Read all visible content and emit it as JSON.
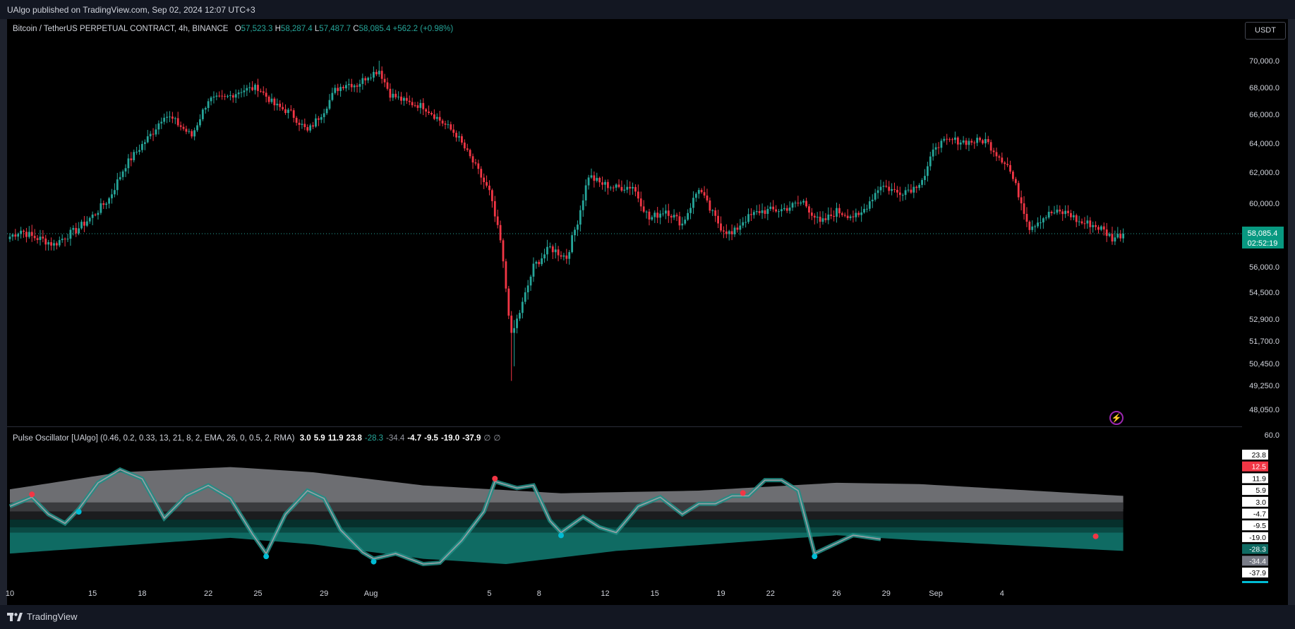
{
  "header": {
    "published": "UAlgo published on TradingView.com, Sep 02, 2024 12:07 UTC+3"
  },
  "symbol": {
    "name": "Bitcoin / TetherUS PERPETUAL CONTRACT, 4h, BINANCE",
    "o_label": "O",
    "o": "57,523.3",
    "h_label": "H",
    "h": "58,287.4",
    "l_label": "L",
    "l": "57,487.7",
    "c_label": "C",
    "c": "58,085.4",
    "change": "+562.2 (+0.98%)"
  },
  "currency_button": "USDT",
  "last_price": {
    "value": "58,085.4",
    "countdown": "02:52:19",
    "color": "#089981"
  },
  "indicator": {
    "name": "Pulse Oscillator [UAlgo] (0.46, 0.2, 0.33, 13, 21, 8, 2, EMA, 26, 0, 0.5, 2, RMA)",
    "values": [
      {
        "text": "3.0",
        "style": "v"
      },
      {
        "text": "5.9",
        "style": "v"
      },
      {
        "text": "11.9",
        "style": "v"
      },
      {
        "text": "23.8",
        "style": "v"
      },
      {
        "text": "-28.3",
        "style": "g"
      },
      {
        "text": "-34.4",
        "style": "gr"
      },
      {
        "text": "-4.7",
        "style": "v"
      },
      {
        "text": "-9.5",
        "style": "v"
      },
      {
        "text": "-19.0",
        "style": "v"
      },
      {
        "text": "-37.9",
        "style": "v"
      },
      {
        "text": "∅",
        "style": "gr"
      },
      {
        "text": "∅",
        "style": "gr"
      }
    ],
    "axis_top": "60.0",
    "axis_badges": [
      {
        "text": "23.8",
        "bg": "#ffffff",
        "fg": "#000000"
      },
      {
        "text": "12.5",
        "bg": "#f23645",
        "fg": "#ffffff"
      },
      {
        "text": "11.9",
        "bg": "#ffffff",
        "fg": "#000000"
      },
      {
        "text": "5.9",
        "bg": "#ffffff",
        "fg": "#000000"
      },
      {
        "text": "3.0",
        "bg": "#ffffff",
        "fg": "#000000"
      },
      {
        "text": "-4.7",
        "bg": "#ffffff",
        "fg": "#000000"
      },
      {
        "text": "-9.5",
        "bg": "#ffffff",
        "fg": "#000000"
      },
      {
        "text": "-19.0",
        "bg": "#ffffff",
        "fg": "#000000"
      },
      {
        "text": "-28.3",
        "bg": "#0f6b63",
        "fg": "#ffffff"
      },
      {
        "text": "-34.4",
        "bg": "#787b86",
        "fg": "#ffffff"
      },
      {
        "text": "-37.9",
        "bg": "#ffffff",
        "fg": "#000000"
      }
    ]
  },
  "footer": {
    "brand": "TradingView"
  },
  "colors": {
    "up": "#26a69a",
    "down": "#f23645",
    "bg": "#000000",
    "cyan_dot": "#00bcd4",
    "red_dot": "#f23645"
  },
  "chart_data": {
    "type": "candlestick",
    "title": "Bitcoin / TetherUS PERPETUAL CONTRACT, 4h, BINANCE",
    "y_ticks": [
      70000,
      68000,
      66000,
      64000,
      62000,
      60000,
      56000,
      54500,
      52900,
      51700,
      50450,
      49250,
      48050
    ],
    "y_tick_labels": [
      "70,000.0",
      "68,000.0",
      "66,000.0",
      "64,000.0",
      "62,000.0",
      "60,000.0",
      "56,000.0",
      "54,500.0",
      "52,900.0",
      "51,700.0",
      "50,450.0",
      "49,250.0",
      "48,050.0"
    ],
    "x_tick_labels": [
      "10",
      "15",
      "18",
      "22",
      "25",
      "29",
      "Aug",
      "5",
      "8",
      "12",
      "15",
      "19",
      "22",
      "26",
      "29",
      "Sep",
      "4"
    ],
    "x_tick_bar_index": [
      0,
      30,
      48,
      72,
      90,
      114,
      131,
      174,
      192,
      216,
      234,
      258,
      276,
      300,
      318,
      336,
      360
    ],
    "price_anchors": [
      [
        0,
        57900
      ],
      [
        4,
        58300
      ],
      [
        8,
        57900
      ],
      [
        12,
        57700
      ],
      [
        16,
        57400
      ],
      [
        20,
        57900
      ],
      [
        24,
        58300
      ],
      [
        30,
        59200
      ],
      [
        36,
        60300
      ],
      [
        42,
        62500
      ],
      [
        48,
        63900
      ],
      [
        52,
        64800
      ],
      [
        56,
        66000
      ],
      [
        60,
        65500
      ],
      [
        66,
        64500
      ],
      [
        72,
        67100
      ],
      [
        78,
        67200
      ],
      [
        84,
        67800
      ],
      [
        90,
        68000
      ],
      [
        96,
        66700
      ],
      [
        102,
        66100
      ],
      [
        108,
        64800
      ],
      [
        114,
        66300
      ],
      [
        118,
        67800
      ],
      [
        122,
        68300
      ],
      [
        126,
        68200
      ],
      [
        130,
        68900
      ],
      [
        134,
        69300
      ],
      [
        138,
        67500
      ],
      [
        144,
        66900
      ],
      [
        150,
        66600
      ],
      [
        156,
        65600
      ],
      [
        162,
        64600
      ],
      [
        168,
        62700
      ],
      [
        174,
        60700
      ],
      [
        178,
        57600
      ],
      [
        182,
        51900
      ],
      [
        186,
        53800
      ],
      [
        190,
        56000
      ],
      [
        196,
        57200
      ],
      [
        202,
        56600
      ],
      [
        206,
        58900
      ],
      [
        210,
        61800
      ],
      [
        214,
        61300
      ],
      [
        220,
        61000
      ],
      [
        226,
        61100
      ],
      [
        232,
        59000
      ],
      [
        238,
        59600
      ],
      [
        244,
        58700
      ],
      [
        250,
        61000
      ],
      [
        254,
        59600
      ],
      [
        258,
        58500
      ],
      [
        262,
        58000
      ],
      [
        266,
        58900
      ],
      [
        272,
        59500
      ],
      [
        280,
        59600
      ],
      [
        288,
        60100
      ],
      [
        294,
        58700
      ],
      [
        300,
        59500
      ],
      [
        308,
        59100
      ],
      [
        316,
        61200
      ],
      [
        322,
        60700
      ],
      [
        328,
        61000
      ],
      [
        332,
        61800
      ],
      [
        336,
        63900
      ],
      [
        342,
        64200
      ],
      [
        348,
        64100
      ],
      [
        354,
        64200
      ],
      [
        358,
        63300
      ],
      [
        362,
        62500
      ],
      [
        366,
        60600
      ],
      [
        370,
        58500
      ],
      [
        374,
        59000
      ],
      [
        378,
        59400
      ],
      [
        384,
        59400
      ],
      [
        388,
        58800
      ],
      [
        392,
        58700
      ],
      [
        396,
        58400
      ],
      [
        400,
        57800
      ],
      [
        404,
        58085
      ]
    ],
    "last_price": 58085.4,
    "oscillator": {
      "name": "Pulse Oscillator [UAlgo]",
      "ylim": [
        -45,
        60
      ],
      "signal_down_bars": [
        8,
        176,
        266,
        394
      ],
      "signal_up_bars": [
        25,
        93,
        132,
        200,
        292
      ],
      "line": [
        [
          0,
          6
        ],
        [
          8,
          13
        ],
        [
          14,
          0
        ],
        [
          20,
          -7
        ],
        [
          25,
          4
        ],
        [
          32,
          24
        ],
        [
          40,
          34
        ],
        [
          48,
          27
        ],
        [
          56,
          -3
        ],
        [
          64,
          14
        ],
        [
          72,
          22
        ],
        [
          80,
          12
        ],
        [
          88,
          -15
        ],
        [
          93,
          -30
        ],
        [
          100,
          0
        ],
        [
          108,
          18
        ],
        [
          114,
          12
        ],
        [
          120,
          -12
        ],
        [
          128,
          -29
        ],
        [
          132,
          -34
        ],
        [
          140,
          -30
        ],
        [
          150,
          -38
        ],
        [
          156,
          -37
        ],
        [
          164,
          -20
        ],
        [
          172,
          2
        ],
        [
          176,
          25
        ],
        [
          184,
          20
        ],
        [
          190,
          22
        ],
        [
          196,
          -5
        ],
        [
          200,
          -14
        ],
        [
          208,
          -2
        ],
        [
          214,
          -10
        ],
        [
          220,
          -14
        ],
        [
          228,
          6
        ],
        [
          236,
          13
        ],
        [
          244,
          0
        ],
        [
          250,
          8
        ],
        [
          256,
          8
        ],
        [
          262,
          14
        ],
        [
          268,
          14
        ],
        [
          274,
          26
        ],
        [
          280,
          26
        ],
        [
          286,
          18
        ],
        [
          292,
          -30
        ],
        [
          298,
          -24
        ],
        [
          306,
          -16
        ],
        [
          316,
          -19
        ]
      ]
    }
  }
}
